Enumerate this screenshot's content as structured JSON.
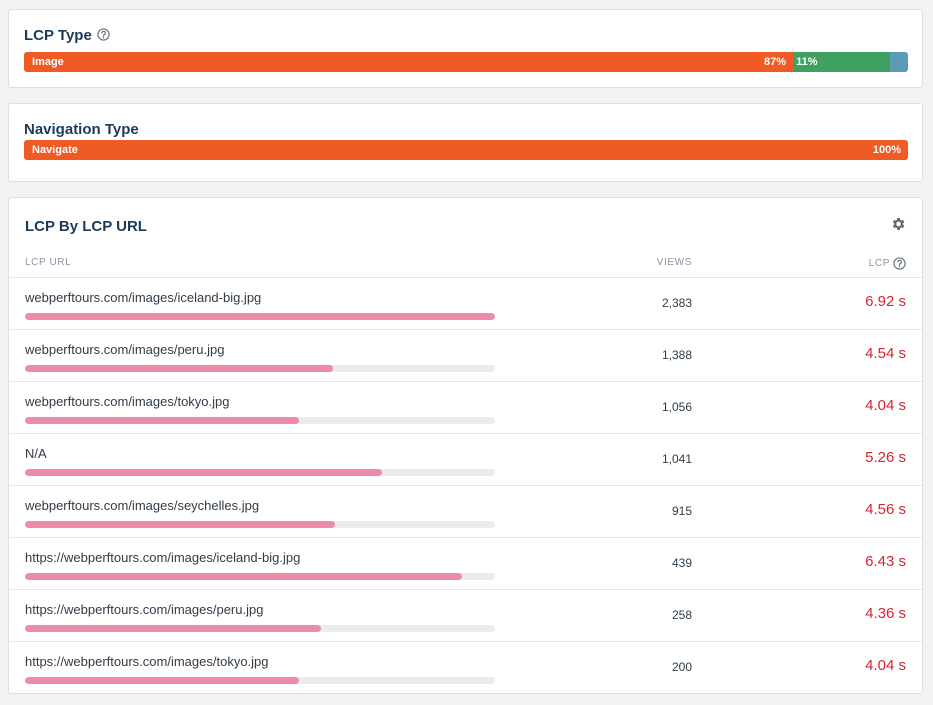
{
  "lcp_type": {
    "title": "LCP Type",
    "segments": [
      {
        "name": "Image",
        "percent_label": "87%",
        "share": 0.87,
        "color": "#f05a24"
      },
      {
        "name": "",
        "percent_label": "11%",
        "share": 0.11,
        "color": "#3fa061"
      },
      {
        "name": "",
        "percent_label": "",
        "share": 0.02,
        "color": "#5b9bb5"
      }
    ]
  },
  "navigation_type": {
    "title": "Navigation Type",
    "segments": [
      {
        "name": "Navigate",
        "percent_label": "100%",
        "share": 1.0,
        "color": "#f05a24"
      }
    ]
  },
  "lcp_by_url": {
    "title": "LCP By LCP URL",
    "columns": {
      "url": "LCP URL",
      "views": "VIEWS",
      "lcp": "LCP"
    },
    "rows": [
      {
        "url": "webperftours.com/images/iceland-big.jpg",
        "views": "2,383",
        "lcp": "6.92 s",
        "bar": 1.0
      },
      {
        "url": "webperftours.com/images/peru.jpg",
        "views": "1,388",
        "lcp": "4.54 s",
        "bar": 0.656
      },
      {
        "url": "webperftours.com/images/tokyo.jpg",
        "views": "1,056",
        "lcp": "4.04 s",
        "bar": 0.584
      },
      {
        "url": "N/A",
        "views": "1,041",
        "lcp": "5.26 s",
        "bar": 0.76
      },
      {
        "url": "webperftours.com/images/seychelles.jpg",
        "views": "915",
        "lcp": "4.56 s",
        "bar": 0.659
      },
      {
        "url": "https://webperftours.com/images/iceland-big.jpg",
        "views": "439",
        "lcp": "6.43 s",
        "bar": 0.929
      },
      {
        "url": "https://webperftours.com/images/peru.jpg",
        "views": "258",
        "lcp": "4.36 s",
        "bar": 0.63
      },
      {
        "url": "https://webperftours.com/images/tokyo.jpg",
        "views": "200",
        "lcp": "4.04 s",
        "bar": 0.584
      }
    ]
  }
}
